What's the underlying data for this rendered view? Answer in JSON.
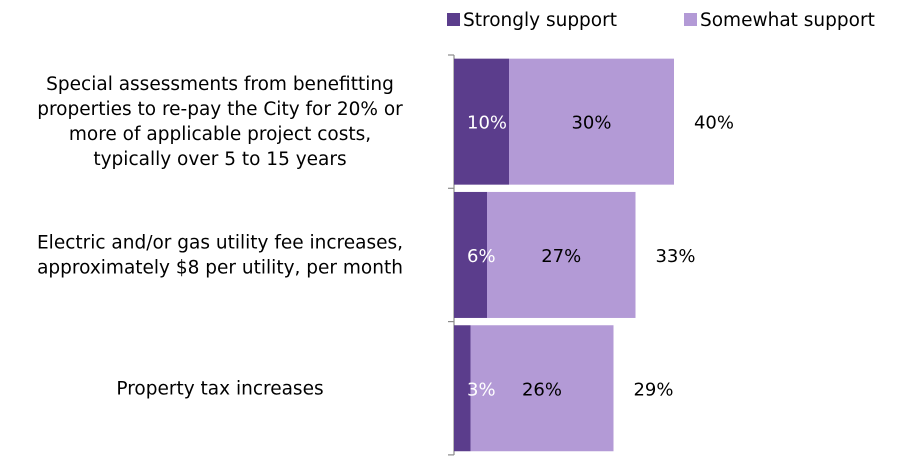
{
  "chart_data": {
    "type": "bar",
    "orientation": "horizontal",
    "stacked": true,
    "categories": [
      [
        "Special assessments from benefitting",
        "properties to re-pay the City for 20% or",
        "more of applicable project costs,",
        "typically over 5 to 15 years"
      ],
      [
        "Electric and/or gas utility fee increases,",
        "approximately $8 per utility, per month"
      ],
      [
        "Property tax increases"
      ]
    ],
    "series": [
      {
        "name": "Strongly support",
        "color": "#5b3d8c",
        "label_color": "#ffffff",
        "values": [
          10,
          6,
          3
        ],
        "labels": [
          "10%",
          "6%",
          "3%"
        ]
      },
      {
        "name": "Somewhat support",
        "color": "#b39ad6",
        "label_color": "#000000",
        "values": [
          30,
          27,
          26
        ],
        "labels": [
          "30%",
          "27%",
          "26%"
        ]
      }
    ],
    "totals": [
      "40%",
      "33%",
      "29%"
    ],
    "xlim": [
      0,
      60
    ],
    "grid": false,
    "legend_position": "top-right"
  }
}
